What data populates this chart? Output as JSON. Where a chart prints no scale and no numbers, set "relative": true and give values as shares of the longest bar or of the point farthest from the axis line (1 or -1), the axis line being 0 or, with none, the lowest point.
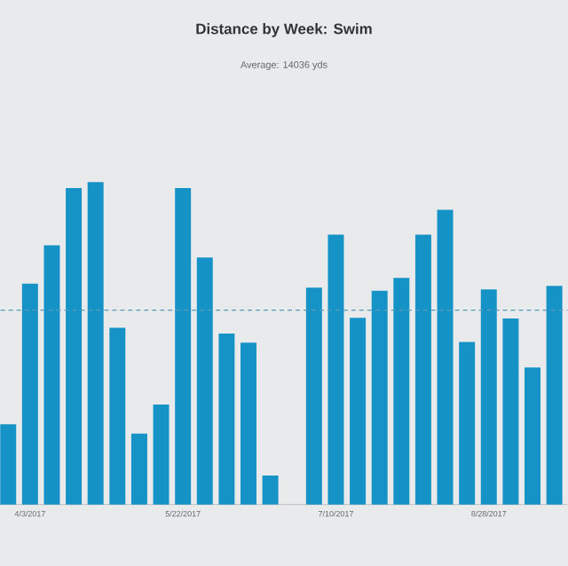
{
  "chart_data": {
    "type": "bar",
    "title": "Distance by Week: Swim",
    "subtitle": "Average: 14036 yds",
    "relative": true,
    "color": "#1592c6",
    "categories": [
      null,
      "4/3/2017",
      null,
      null,
      null,
      null,
      null,
      null,
      "5/22/2017",
      null,
      null,
      null,
      null,
      null,
      null,
      "7/10/2017",
      null,
      null,
      null,
      null,
      null,
      null,
      "8/28/2017",
      null,
      null,
      null
    ],
    "values": [
      0.249,
      0.685,
      0.804,
      0.982,
      1,
      0.548,
      0.22,
      0.31,
      0.982,
      0.766,
      0.53,
      0.502,
      0.09,
      0,
      0.673,
      0.837,
      0.579,
      0.663,
      0.703,
      0.837,
      0.914,
      0.504,
      0.667,
      0.577,
      0.425,
      0.678
    ],
    "ref_lines": [
      {
        "axis": "y",
        "value": 0.603,
        "color": "#5a9ab8",
        "line_style": "dashed"
      }
    ]
  }
}
